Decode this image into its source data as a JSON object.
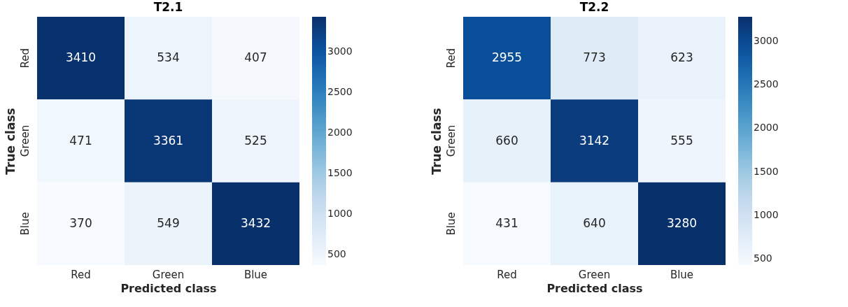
{
  "chart_data": [
    {
      "type": "heatmap",
      "title": "T2.1",
      "xlabel": "Predicted class",
      "ylabel": "True class",
      "categories": [
        "Red",
        "Green",
        "Blue"
      ],
      "y_categories": [
        "Red",
        "Green",
        "Blue"
      ],
      "cells": [
        [
          3410,
          534,
          407
        ],
        [
          471,
          3361,
          525
        ],
        [
          370,
          549,
          3432
        ]
      ],
      "clim": [
        370,
        3432
      ],
      "cticks": [
        500,
        1000,
        1500,
        2000,
        2500,
        3000
      ],
      "data_labels": true,
      "grid": false
    },
    {
      "type": "heatmap",
      "title": "T2.2",
      "xlabel": "Predicted class",
      "ylabel": "True class",
      "categories": [
        "Red",
        "Green",
        "Blue"
      ],
      "y_categories": [
        "Red",
        "Green",
        "Blue"
      ],
      "cells": [
        [
          2955,
          773,
          623
        ],
        [
          660,
          3142,
          555
        ],
        [
          431,
          640,
          3280
        ]
      ],
      "clim": [
        431,
        3280
      ],
      "cticks": [
        500,
        1000,
        1500,
        2000,
        2500,
        3000
      ],
      "data_labels": true,
      "grid": false
    }
  ]
}
